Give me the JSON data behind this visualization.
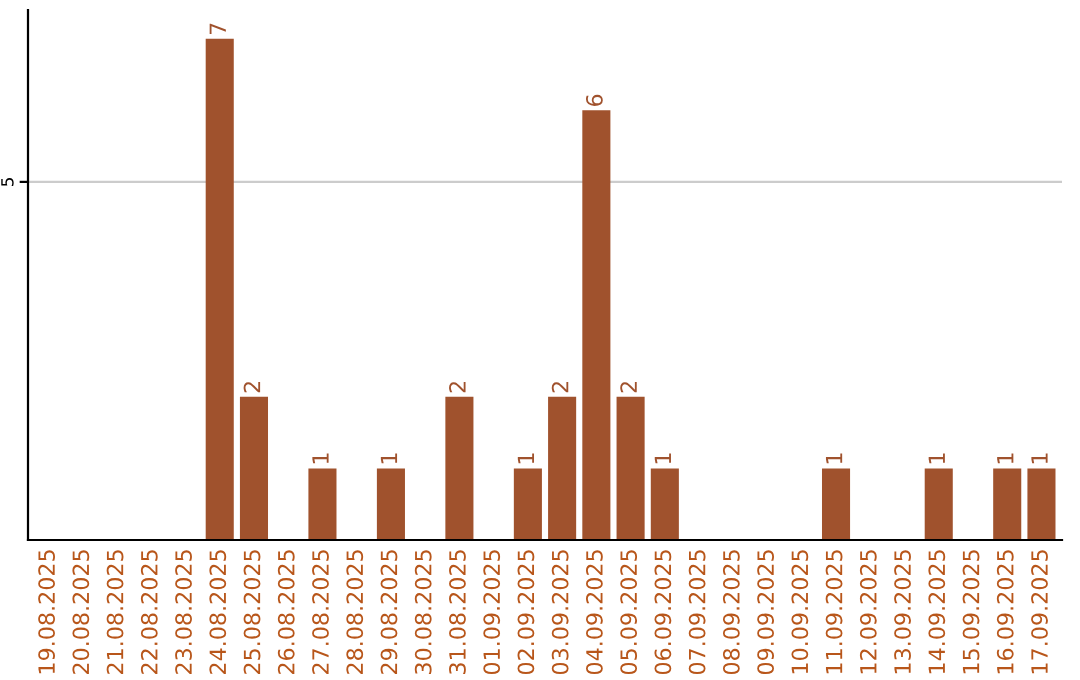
{
  "chart_data": {
    "type": "bar",
    "categories": [
      "19.08.2025",
      "20.08.2025",
      "21.08.2025",
      "22.08.2025",
      "23.08.2025",
      "24.08.2025",
      "25.08.2025",
      "26.08.2025",
      "27.08.2025",
      "28.08.2025",
      "29.08.2025",
      "30.08.2025",
      "31.08.2025",
      "01.09.2025",
      "02.09.2025",
      "03.09.2025",
      "04.09.2025",
      "05.09.2025",
      "06.09.2025",
      "07.09.2025",
      "08.09.2025",
      "09.09.2025",
      "10.09.2025",
      "11.09.2025",
      "12.09.2025",
      "13.09.2025",
      "14.09.2025",
      "15.09.2025",
      "16.09.2025",
      "17.09.2025"
    ],
    "values": [
      0,
      0,
      0,
      0,
      0,
      7,
      2,
      0,
      1,
      0,
      1,
      0,
      2,
      0,
      1,
      2,
      6,
      2,
      1,
      0,
      0,
      0,
      0,
      1,
      0,
      0,
      1,
      0,
      1,
      1
    ],
    "value_labels": [
      null,
      null,
      null,
      null,
      null,
      "7",
      "2",
      null,
      "1",
      null,
      "1",
      null,
      "2",
      null,
      "1",
      "2",
      "6",
      "2",
      "1",
      null,
      null,
      null,
      null,
      "1",
      null,
      null,
      "1",
      null,
      "1",
      "1"
    ],
    "color": "#a0522d",
    "ylim": [
      0,
      7.4
    ],
    "yticks": [
      5
    ],
    "grid": "y"
  }
}
